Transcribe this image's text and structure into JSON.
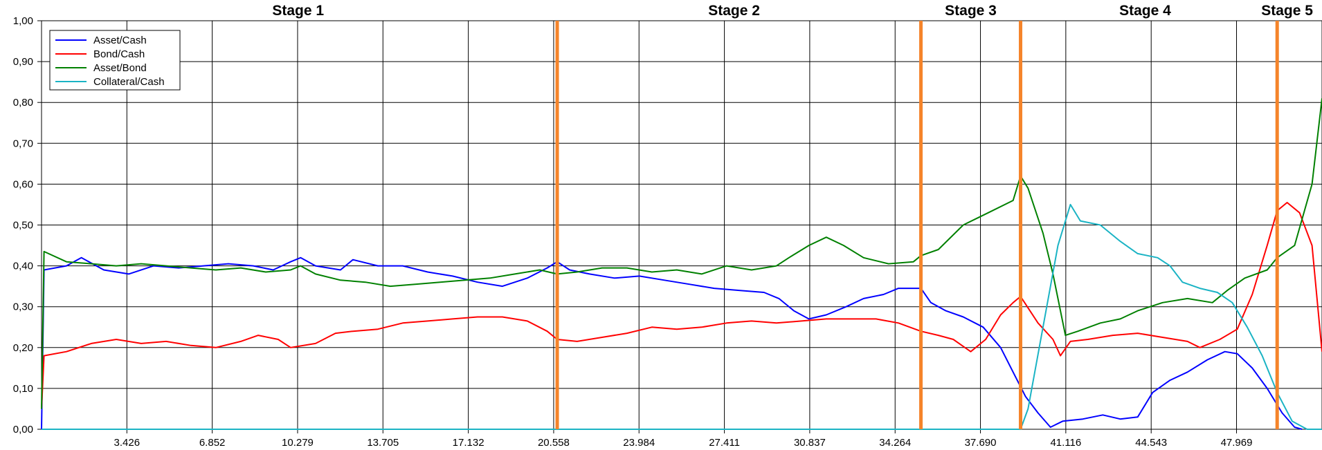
{
  "chart_data": {
    "type": "line",
    "title": "",
    "xlabel": "",
    "ylabel": "",
    "xlim": [
      0,
      51.4
    ],
    "ylim": [
      0,
      1
    ],
    "grid": true,
    "legend_position": "top-left",
    "y_ticks": [
      "0,00",
      "0,10",
      "0,20",
      "0,30",
      "0,40",
      "0,50",
      "0,60",
      "0,70",
      "0,80",
      "0,90",
      "1,00"
    ],
    "y_tick_values": [
      0,
      0.1,
      0.2,
      0.3,
      0.4,
      0.5,
      0.6,
      0.7,
      0.8,
      0.9,
      1.0
    ],
    "x_ticks": [
      "3.426",
      "6.852",
      "10.279",
      "13.705",
      "17.132",
      "20.558",
      "23.984",
      "27.411",
      "30.837",
      "34.264",
      "37.690",
      "41.116",
      "44.543",
      "47.969"
    ],
    "x_tick_values": [
      3.426,
      6.852,
      10.279,
      13.705,
      17.132,
      20.558,
      23.984,
      27.411,
      30.837,
      34.264,
      37.69,
      41.116,
      44.543,
      47.969
    ],
    "stage_lines": [
      20.7,
      35.3,
      39.3,
      49.6
    ],
    "stage_line_color": "#f5842a",
    "stages": [
      {
        "label": "Stage 1",
        "x": 10.3
      },
      {
        "label": "Stage 2",
        "x": 27.8
      },
      {
        "label": "Stage 3",
        "x": 37.3
      },
      {
        "label": "Stage 4",
        "x": 44.3
      },
      {
        "label": "Stage 5",
        "x": 50.0
      }
    ],
    "series": [
      {
        "name": "Asset/Cash",
        "color": "#0000ff",
        "points": [
          [
            0,
            0.0
          ],
          [
            0.1,
            0.39
          ],
          [
            1.0,
            0.4
          ],
          [
            1.6,
            0.42
          ],
          [
            2.5,
            0.39
          ],
          [
            3.5,
            0.38
          ],
          [
            4.5,
            0.4
          ],
          [
            5.5,
            0.395
          ],
          [
            6.5,
            0.4
          ],
          [
            7.5,
            0.405
          ],
          [
            8.5,
            0.4
          ],
          [
            9.3,
            0.39
          ],
          [
            10.0,
            0.41
          ],
          [
            10.4,
            0.42
          ],
          [
            11.0,
            0.4
          ],
          [
            12.0,
            0.39
          ],
          [
            12.5,
            0.415
          ],
          [
            13.5,
            0.4
          ],
          [
            14.5,
            0.4
          ],
          [
            15.5,
            0.385
          ],
          [
            16.5,
            0.375
          ],
          [
            17.5,
            0.36
          ],
          [
            18.5,
            0.35
          ],
          [
            19.5,
            0.37
          ],
          [
            20.3,
            0.395
          ],
          [
            20.7,
            0.41
          ],
          [
            21.2,
            0.39
          ],
          [
            22.0,
            0.38
          ],
          [
            23.0,
            0.37
          ],
          [
            24.0,
            0.375
          ],
          [
            25.0,
            0.365
          ],
          [
            26.0,
            0.355
          ],
          [
            27.0,
            0.345
          ],
          [
            28.0,
            0.34
          ],
          [
            29.0,
            0.335
          ],
          [
            29.6,
            0.32
          ],
          [
            30.2,
            0.29
          ],
          [
            30.8,
            0.27
          ],
          [
            31.5,
            0.28
          ],
          [
            32.3,
            0.3
          ],
          [
            33.0,
            0.32
          ],
          [
            33.8,
            0.33
          ],
          [
            34.4,
            0.345
          ],
          [
            35.3,
            0.345
          ],
          [
            35.7,
            0.31
          ],
          [
            36.3,
            0.29
          ],
          [
            37.0,
            0.275
          ],
          [
            37.8,
            0.25
          ],
          [
            38.5,
            0.2
          ],
          [
            39.0,
            0.14
          ],
          [
            39.5,
            0.08
          ],
          [
            40.0,
            0.04
          ],
          [
            40.5,
            0.005
          ],
          [
            41.0,
            0.02
          ],
          [
            41.8,
            0.025
          ],
          [
            42.6,
            0.035
          ],
          [
            43.3,
            0.025
          ],
          [
            44.0,
            0.03
          ],
          [
            44.6,
            0.09
          ],
          [
            45.3,
            0.12
          ],
          [
            46.0,
            0.14
          ],
          [
            46.8,
            0.17
          ],
          [
            47.5,
            0.19
          ],
          [
            48.0,
            0.185
          ],
          [
            48.6,
            0.15
          ],
          [
            49.2,
            0.1
          ],
          [
            49.8,
            0.04
          ],
          [
            50.3,
            0.005
          ],
          [
            50.6,
            0.0
          ]
        ]
      },
      {
        "name": "Bond/Cash",
        "color": "#ff0000",
        "points": [
          [
            0,
            0.05
          ],
          [
            0.1,
            0.18
          ],
          [
            1.0,
            0.19
          ],
          [
            2.0,
            0.21
          ],
          [
            3.0,
            0.22
          ],
          [
            4.0,
            0.21
          ],
          [
            5.0,
            0.215
          ],
          [
            6.0,
            0.205
          ],
          [
            7.0,
            0.2
          ],
          [
            8.0,
            0.215
          ],
          [
            8.7,
            0.23
          ],
          [
            9.5,
            0.22
          ],
          [
            10.0,
            0.2
          ],
          [
            11.0,
            0.21
          ],
          [
            11.8,
            0.235
          ],
          [
            12.5,
            0.24
          ],
          [
            13.5,
            0.245
          ],
          [
            14.5,
            0.26
          ],
          [
            15.5,
            0.265
          ],
          [
            16.5,
            0.27
          ],
          [
            17.5,
            0.275
          ],
          [
            18.5,
            0.275
          ],
          [
            19.5,
            0.265
          ],
          [
            20.3,
            0.24
          ],
          [
            20.7,
            0.22
          ],
          [
            21.5,
            0.215
          ],
          [
            22.5,
            0.225
          ],
          [
            23.5,
            0.235
          ],
          [
            24.5,
            0.25
          ],
          [
            25.5,
            0.245
          ],
          [
            26.5,
            0.25
          ],
          [
            27.5,
            0.26
          ],
          [
            28.5,
            0.265
          ],
          [
            29.5,
            0.26
          ],
          [
            30.5,
            0.265
          ],
          [
            31.5,
            0.27
          ],
          [
            32.5,
            0.27
          ],
          [
            33.5,
            0.27
          ],
          [
            34.4,
            0.26
          ],
          [
            35.3,
            0.24
          ],
          [
            36.0,
            0.23
          ],
          [
            36.6,
            0.22
          ],
          [
            37.3,
            0.19
          ],
          [
            37.9,
            0.22
          ],
          [
            38.5,
            0.28
          ],
          [
            39.0,
            0.31
          ],
          [
            39.3,
            0.325
          ],
          [
            40.0,
            0.26
          ],
          [
            40.6,
            0.22
          ],
          [
            40.9,
            0.18
          ],
          [
            41.3,
            0.215
          ],
          [
            42.0,
            0.22
          ],
          [
            43.0,
            0.23
          ],
          [
            44.0,
            0.235
          ],
          [
            45.0,
            0.225
          ],
          [
            46.0,
            0.215
          ],
          [
            46.5,
            0.2
          ],
          [
            47.3,
            0.22
          ],
          [
            48.0,
            0.245
          ],
          [
            48.6,
            0.33
          ],
          [
            49.2,
            0.45
          ],
          [
            49.6,
            0.535
          ],
          [
            50.0,
            0.555
          ],
          [
            50.5,
            0.53
          ],
          [
            51.0,
            0.45
          ],
          [
            51.4,
            0.19
          ]
        ]
      },
      {
        "name": "Asset/Bond",
        "color": "#008000",
        "points": [
          [
            0,
            0.05
          ],
          [
            0.1,
            0.435
          ],
          [
            1.0,
            0.41
          ],
          [
            2.0,
            0.405
          ],
          [
            3.0,
            0.4
          ],
          [
            4.0,
            0.405
          ],
          [
            5.0,
            0.4
          ],
          [
            6.0,
            0.395
          ],
          [
            7.0,
            0.39
          ],
          [
            8.0,
            0.395
          ],
          [
            9.0,
            0.385
          ],
          [
            10.0,
            0.39
          ],
          [
            10.4,
            0.4
          ],
          [
            11.0,
            0.38
          ],
          [
            12.0,
            0.365
          ],
          [
            13.0,
            0.36
          ],
          [
            14.0,
            0.35
          ],
          [
            15.0,
            0.355
          ],
          [
            16.0,
            0.36
          ],
          [
            17.0,
            0.365
          ],
          [
            18.0,
            0.37
          ],
          [
            19.0,
            0.38
          ],
          [
            20.0,
            0.39
          ],
          [
            20.7,
            0.38
          ],
          [
            21.5,
            0.385
          ],
          [
            22.5,
            0.395
          ],
          [
            23.5,
            0.395
          ],
          [
            24.5,
            0.385
          ],
          [
            25.5,
            0.39
          ],
          [
            26.5,
            0.38
          ],
          [
            27.5,
            0.4
          ],
          [
            28.5,
            0.39
          ],
          [
            29.5,
            0.4
          ],
          [
            30.0,
            0.42
          ],
          [
            30.8,
            0.45
          ],
          [
            31.5,
            0.47
          ],
          [
            32.2,
            0.45
          ],
          [
            33.0,
            0.42
          ],
          [
            34.0,
            0.405
          ],
          [
            35.0,
            0.41
          ],
          [
            35.3,
            0.425
          ],
          [
            36.0,
            0.44
          ],
          [
            37.0,
            0.5
          ],
          [
            38.0,
            0.53
          ],
          [
            39.0,
            0.56
          ],
          [
            39.3,
            0.62
          ],
          [
            39.6,
            0.59
          ],
          [
            40.2,
            0.48
          ],
          [
            40.6,
            0.38
          ],
          [
            41.1,
            0.23
          ],
          [
            41.6,
            0.24
          ],
          [
            42.5,
            0.26
          ],
          [
            43.3,
            0.27
          ],
          [
            44.0,
            0.29
          ],
          [
            45.0,
            0.31
          ],
          [
            46.0,
            0.32
          ],
          [
            47.0,
            0.31
          ],
          [
            47.6,
            0.34
          ],
          [
            48.3,
            0.37
          ],
          [
            49.2,
            0.39
          ],
          [
            49.6,
            0.42
          ],
          [
            50.3,
            0.45
          ],
          [
            51.0,
            0.6
          ],
          [
            51.4,
            0.81
          ]
        ]
      },
      {
        "name": "Collateral/Cash",
        "color": "#1ab3c4",
        "points": [
          [
            0,
            0.0
          ],
          [
            39.3,
            0.0
          ],
          [
            39.6,
            0.05
          ],
          [
            40.2,
            0.25
          ],
          [
            40.8,
            0.45
          ],
          [
            41.3,
            0.55
          ],
          [
            41.7,
            0.51
          ],
          [
            42.5,
            0.5
          ],
          [
            43.3,
            0.46
          ],
          [
            44.0,
            0.43
          ],
          [
            44.8,
            0.42
          ],
          [
            45.3,
            0.4
          ],
          [
            45.8,
            0.36
          ],
          [
            46.5,
            0.345
          ],
          [
            47.2,
            0.335
          ],
          [
            47.8,
            0.31
          ],
          [
            48.4,
            0.25
          ],
          [
            49.0,
            0.18
          ],
          [
            49.6,
            0.09
          ],
          [
            50.2,
            0.02
          ],
          [
            50.8,
            0.0
          ],
          [
            51.4,
            0.0
          ]
        ]
      }
    ]
  }
}
